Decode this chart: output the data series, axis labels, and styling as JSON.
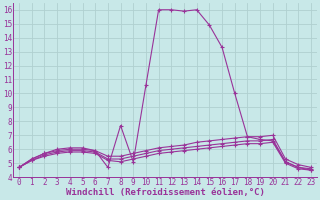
{
  "bg_color": "#c8e8e8",
  "line_color": "#993399",
  "grid_color": "#b0d0d0",
  "xlabel": "Windchill (Refroidissement éolien,°C)",
  "xlabel_fontsize": 6.5,
  "xtick_fontsize": 5.5,
  "ytick_fontsize": 5.5,
  "xlim": [
    -0.5,
    23.5
  ],
  "ylim": [
    4,
    16.5
  ],
  "yticks": [
    4,
    5,
    6,
    7,
    8,
    9,
    10,
    11,
    12,
    13,
    14,
    15,
    16
  ],
  "xticks": [
    0,
    1,
    2,
    3,
    4,
    5,
    6,
    7,
    8,
    9,
    10,
    11,
    12,
    13,
    14,
    15,
    16,
    17,
    18,
    19,
    20,
    21,
    22,
    23
  ],
  "series": [
    [
      4.7,
      5.3,
      5.7,
      6.0,
      6.1,
      6.1,
      5.9,
      4.7,
      7.7,
      5.1,
      10.6,
      16.0,
      16.0,
      15.9,
      16.0,
      14.9,
      13.3,
      10.0,
      6.9,
      6.7,
      6.6,
      5.1,
      4.7,
      4.6
    ],
    [
      4.7,
      5.3,
      5.7,
      5.9,
      6.0,
      6.0,
      5.9,
      5.5,
      5.5,
      5.7,
      5.9,
      6.1,
      6.2,
      6.3,
      6.5,
      6.6,
      6.7,
      6.8,
      6.9,
      6.9,
      7.0,
      5.3,
      4.9,
      4.7
    ],
    [
      4.7,
      5.2,
      5.6,
      5.8,
      5.9,
      5.9,
      5.8,
      5.3,
      5.3,
      5.5,
      5.7,
      5.9,
      6.0,
      6.1,
      6.2,
      6.3,
      6.4,
      6.5,
      6.6,
      6.6,
      6.7,
      5.1,
      4.7,
      4.5
    ],
    [
      4.7,
      5.2,
      5.5,
      5.7,
      5.8,
      5.8,
      5.7,
      5.2,
      5.1,
      5.3,
      5.5,
      5.7,
      5.8,
      5.9,
      6.0,
      6.1,
      6.2,
      6.3,
      6.4,
      6.4,
      6.5,
      5.0,
      4.6,
      4.5
    ]
  ]
}
